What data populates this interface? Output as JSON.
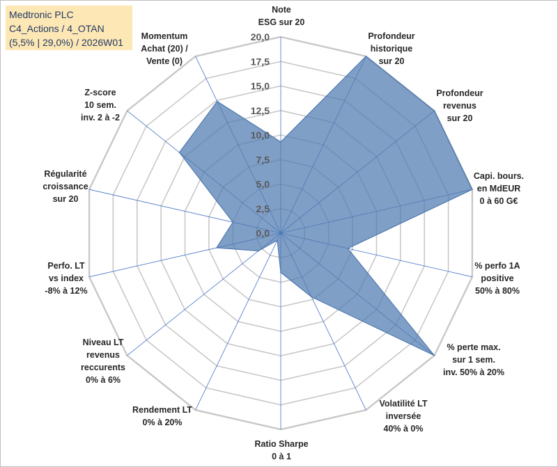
{
  "chart_data": {
    "type": "radar",
    "title_lines": [
      "Medtronic PLC",
      "C4_Actions / 4_OTAN",
      "(5,5% | 29,0%) / 2026W01"
    ],
    "range": [
      0,
      20
    ],
    "tick_step": 2.5,
    "tick_labels": [
      "0,0",
      "2,5",
      "5,0",
      "7,5",
      "10,0",
      "12,5",
      "15,0",
      "17,5",
      "20,0"
    ],
    "axes": [
      {
        "label": [
          "Note",
          "ESG sur 20"
        ],
        "value": 9.3
      },
      {
        "label": [
          "Profondeur",
          "historique",
          "sur 20"
        ],
        "value": 20
      },
      {
        "label": [
          "Profondeur",
          "revenus",
          "sur 20"
        ],
        "value": 20
      },
      {
        "label": [
          "Capi. bours.",
          "en MdEUR",
          "0 à 60 G€"
        ],
        "value": 20
      },
      {
        "label": [
          "% perfo 1A",
          "positive",
          "50% à 80%"
        ],
        "value": 7.0
      },
      {
        "label": [
          "% perte max.",
          "sur 1 sem.",
          "inv. 50% à 20%"
        ],
        "value": 20
      },
      {
        "label": [
          "Volatilité LT",
          "inversée",
          "40% à 0%"
        ],
        "value": 7.2
      },
      {
        "label": [
          "Ratio Sharpe",
          "0 à 1"
        ],
        "value": 4.0
      },
      {
        "label": [
          "Rendement LT",
          "0% à 20%"
        ],
        "value": 0.8
      },
      {
        "label": [
          "Niveau LT",
          "revenus",
          "reccurents",
          "0% à 6%"
        ],
        "value": 2.9
      },
      {
        "label": [
          "Perfo. LT",
          "vs index",
          "-8% à 12%"
        ],
        "value": 6.7
      },
      {
        "label": [
          "Régularité",
          "croissance",
          "sur 20"
        ],
        "value": 5.0
      },
      {
        "label": [
          "Z-score",
          "10 sem.",
          "inv. 2 à -2"
        ],
        "value": 13.2
      },
      {
        "label": [
          "Momentum",
          "Achat (20) /",
          "Vente (0)"
        ],
        "value": 14.9
      }
    ],
    "series": [
      {
        "name": "Medtronic PLC",
        "color": "#4f7ab0",
        "fill_opacity": 0.72
      }
    ]
  },
  "colors": {
    "grid": "#c8c8c8",
    "spoke": "#4472c4",
    "title_bg": "#fde7b4",
    "title_text": "#1f3864"
  }
}
